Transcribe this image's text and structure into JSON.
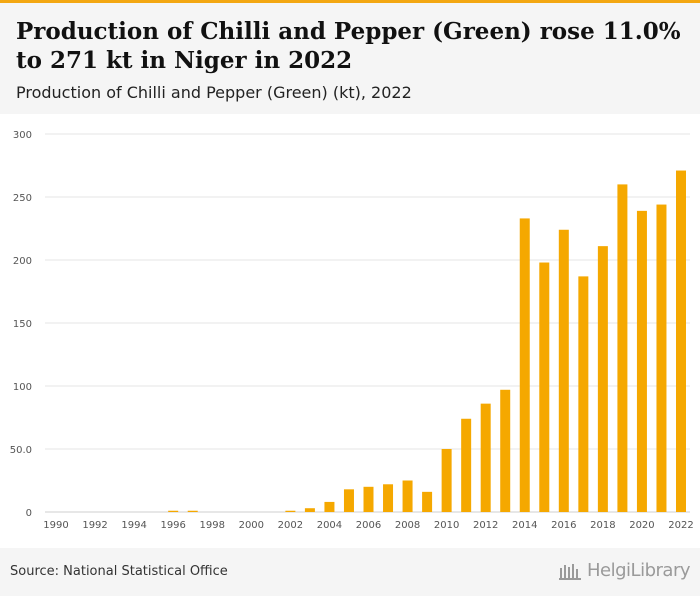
{
  "header": {
    "title": "Production of Chilli and Pepper (Green) rose 11.0% to 271 kt in Niger in 2022",
    "subtitle": "Production of Chilli and Pepper (Green) (kt), 2022"
  },
  "footer": {
    "source": "Source: National Statistical Office",
    "logo_text": "HelgiLibrary"
  },
  "colors": {
    "accent": "#f3a712",
    "bar": "#f5a800",
    "header_bg": "#f5f5f5",
    "grid": "#e6e6e6"
  },
  "chart_data": {
    "type": "bar",
    "categories": [
      1990,
      1991,
      1992,
      1993,
      1994,
      1995,
      1996,
      1997,
      1998,
      1999,
      2000,
      2001,
      2002,
      2003,
      2004,
      2005,
      2006,
      2007,
      2008,
      2009,
      2010,
      2011,
      2012,
      2013,
      2014,
      2015,
      2016,
      2017,
      2018,
      2019,
      2020,
      2021,
      2022
    ],
    "values": [
      0,
      0,
      0,
      0,
      0,
      0,
      1,
      1,
      0,
      0,
      0,
      0,
      1,
      3,
      8,
      18,
      20,
      22,
      25,
      16,
      50,
      74,
      86,
      97,
      233,
      198,
      224,
      187,
      211,
      260,
      239,
      244,
      271
    ],
    "x_tick_labels": [
      "1990",
      "1992",
      "1994",
      "1996",
      "1998",
      "2000",
      "2002",
      "2004",
      "2006",
      "2008",
      "2010",
      "2012",
      "2014",
      "2016",
      "2018",
      "2020",
      "2022"
    ],
    "y_ticks": [
      0,
      50,
      100,
      150,
      200,
      250,
      300
    ],
    "y_tick_labels": [
      "0",
      "50.0",
      "100",
      "150",
      "200",
      "250",
      "300"
    ],
    "ylim": [
      0,
      300
    ],
    "xlabel": "",
    "ylabel": "",
    "grid": true,
    "legend": "none"
  }
}
